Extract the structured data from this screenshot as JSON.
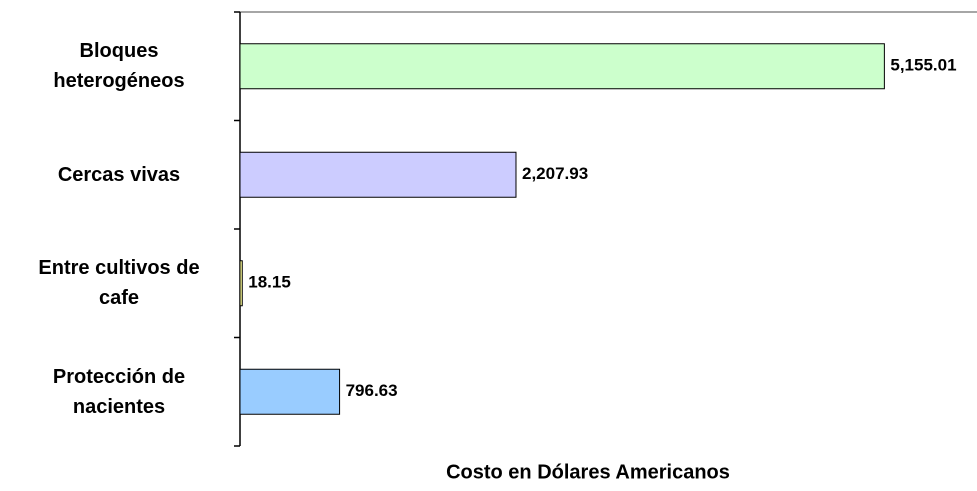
{
  "chart_data": {
    "type": "barh",
    "categories": [
      "Bloques heterogéneos",
      "Cercas vivas",
      "Entre cultivos de cafe",
      "Protección de nacientes"
    ],
    "values": [
      5155.01,
      2207.93,
      18.15,
      796.63
    ],
    "value_labels": [
      "5,155.01",
      "2,207.93",
      "18.15",
      "796.63"
    ],
    "colors": [
      "#ccffcc",
      "#ccccff",
      "#ffff99",
      "#99ccff"
    ],
    "xlabel": "Costo en Dólares Americanos",
    "xlim": [
      0,
      5880
    ],
    "grid": false
  }
}
